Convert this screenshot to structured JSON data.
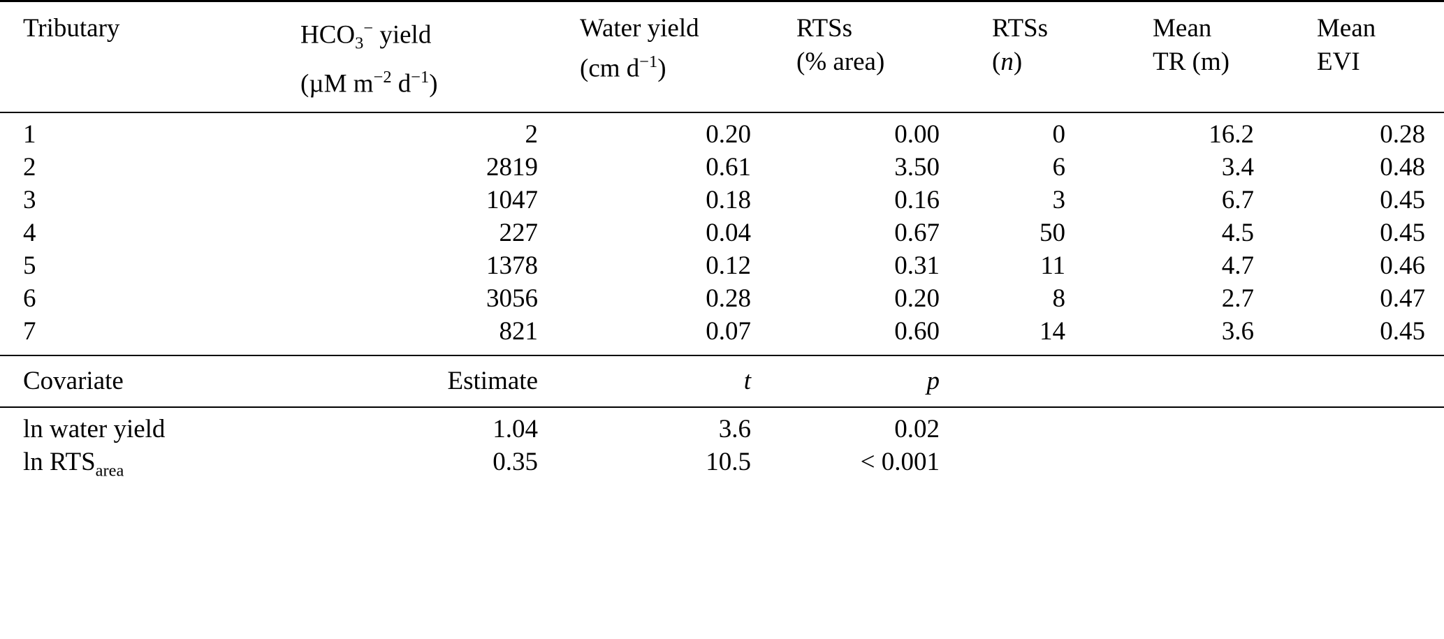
{
  "meta": {
    "background_color": "#ffffff",
    "text_color": "#000000",
    "rule_color": "#000000"
  },
  "table1": {
    "headers": [
      {
        "id": "tributary",
        "line1": [
          {
            "t": "Tributary"
          }
        ],
        "line2": []
      },
      {
        "id": "hco3-yield",
        "line1": [
          {
            "t": "HCO"
          },
          {
            "t": "3",
            "s": "sub"
          },
          {
            "t": "−",
            "s": "sup"
          },
          {
            "t": " yield"
          }
        ],
        "line2": [
          {
            "t": "(µM m"
          },
          {
            "t": "−2",
            "s": "sup"
          },
          {
            "t": " d"
          },
          {
            "t": "−1",
            "s": "sup"
          },
          {
            "t": ")"
          }
        ]
      },
      {
        "id": "water-yield",
        "line1": [
          {
            "t": "Water yield"
          }
        ],
        "line2": [
          {
            "t": "(cm d"
          },
          {
            "t": "−1",
            "s": "sup"
          },
          {
            "t": ")"
          }
        ]
      },
      {
        "id": "rts-area",
        "line1": [
          {
            "t": "RTSs"
          }
        ],
        "line2": [
          {
            "t": "(% area)"
          }
        ]
      },
      {
        "id": "rts-n",
        "line1": [
          {
            "t": "RTSs"
          }
        ],
        "line2": [
          {
            "t": "("
          },
          {
            "t": "n",
            "s": "it"
          },
          {
            "t": ")"
          }
        ]
      },
      {
        "id": "mean-tr",
        "line1": [
          {
            "t": "Mean"
          }
        ],
        "line2": [
          {
            "t": "TR (m)"
          }
        ]
      },
      {
        "id": "mean-evi",
        "line1": [
          {
            "t": "Mean"
          }
        ],
        "line2": [
          {
            "t": "EVI"
          }
        ]
      }
    ],
    "rows": [
      [
        "1",
        "2",
        "0.20",
        "0.00",
        "0",
        "16.2",
        "0.28"
      ],
      [
        "2",
        "2819",
        "0.61",
        "3.50",
        "6",
        "3.4",
        "0.48"
      ],
      [
        "3",
        "1047",
        "0.18",
        "0.16",
        "3",
        "6.7",
        "0.45"
      ],
      [
        "4",
        "227",
        "0.04",
        "0.67",
        "50",
        "4.5",
        "0.45"
      ],
      [
        "5",
        "1378",
        "0.12",
        "0.31",
        "11",
        "4.7",
        "0.46"
      ],
      [
        "6",
        "3056",
        "0.28",
        "0.20",
        "8",
        "2.7",
        "0.47"
      ],
      [
        "7",
        "821",
        "0.07",
        "0.60",
        "14",
        "3.6",
        "0.45"
      ]
    ]
  },
  "table2": {
    "headers": [
      {
        "id": "covariate",
        "segs": [
          {
            "t": "Covariate"
          }
        ]
      },
      {
        "id": "estimate",
        "segs": [
          {
            "t": "Estimate"
          }
        ]
      },
      {
        "id": "t-stat",
        "segs": [
          {
            "t": "t",
            "s": "it"
          }
        ]
      },
      {
        "id": "p-value",
        "segs": [
          {
            "t": "p",
            "s": "it"
          }
        ]
      }
    ],
    "rows": [
      {
        "id": "ln-water-yield",
        "cells": [
          [
            {
              "t": "ln water yield"
            }
          ],
          [
            {
              "t": "1.04"
            }
          ],
          [
            {
              "t": "3.6"
            }
          ],
          [
            {
              "t": "0.02"
            }
          ]
        ]
      },
      {
        "id": "ln-rts-area",
        "cells": [
          [
            {
              "t": "ln RTS"
            },
            {
              "t": "area",
              "s": "sub"
            }
          ],
          [
            {
              "t": "0.35"
            }
          ],
          [
            {
              "t": "10.5"
            }
          ],
          [
            {
              "t": "< 0.001"
            }
          ]
        ]
      }
    ]
  }
}
